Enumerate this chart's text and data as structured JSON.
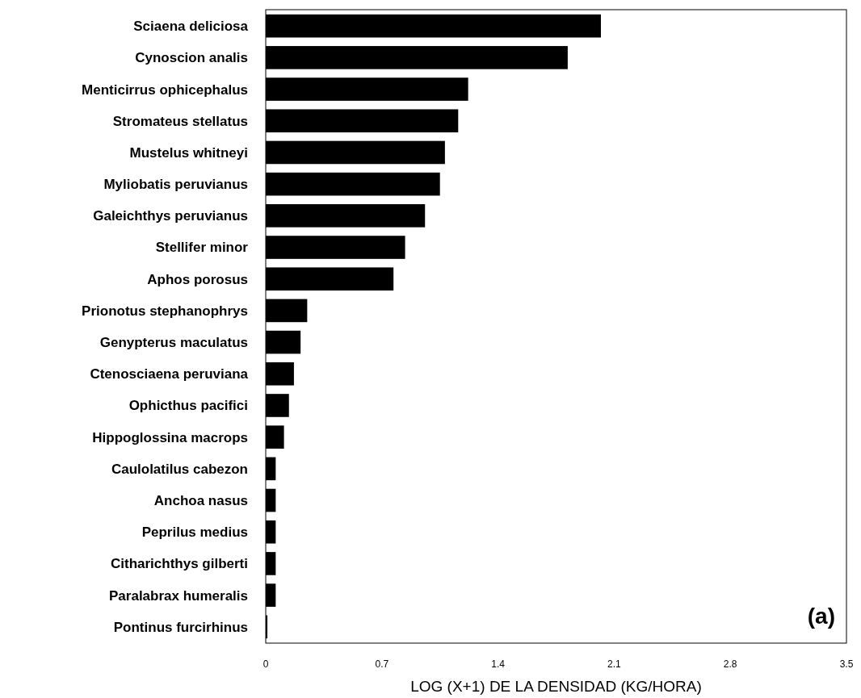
{
  "chart_data": {
    "type": "bar",
    "orientation": "horizontal",
    "xlabel": "LOG (X+1) DE LA DENSIDAD (KG/HORA)",
    "annotations": [
      "(a)"
    ],
    "categories": [
      "Sciaena deliciosa",
      "Cynoscion analis",
      "Menticirrus ophicephalus",
      "Stromateus stellatus",
      "Mustelus whitneyi",
      "Myliobatis peruvianus",
      "Galeichthys peruvianus",
      "Stellifer minor",
      "Aphos porosus",
      "Prionotus stephanophrys",
      "Genypterus maculatus",
      "Ctenosciaena peruviana",
      "Ophicthus pacifici",
      "Hippoglossina macrops",
      "Caulolatilus cabezon",
      "Anchoa nasus",
      "Peprilus medius",
      "Citharichthys gilberti",
      "Paralabrax humeralis",
      "Pontinus furcirhinus"
    ],
    "values": [
      2.02,
      1.82,
      1.22,
      1.16,
      1.08,
      1.05,
      0.96,
      0.84,
      0.77,
      0.25,
      0.21,
      0.17,
      0.14,
      0.11,
      0.06,
      0.06,
      0.06,
      0.06,
      0.06,
      0.01
    ],
    "color": "#000000",
    "xlim": [
      0,
      3.5
    ],
    "xticks": [
      0,
      0.7,
      1.4,
      2.1,
      2.8,
      3.5
    ],
    "grid": false
  }
}
